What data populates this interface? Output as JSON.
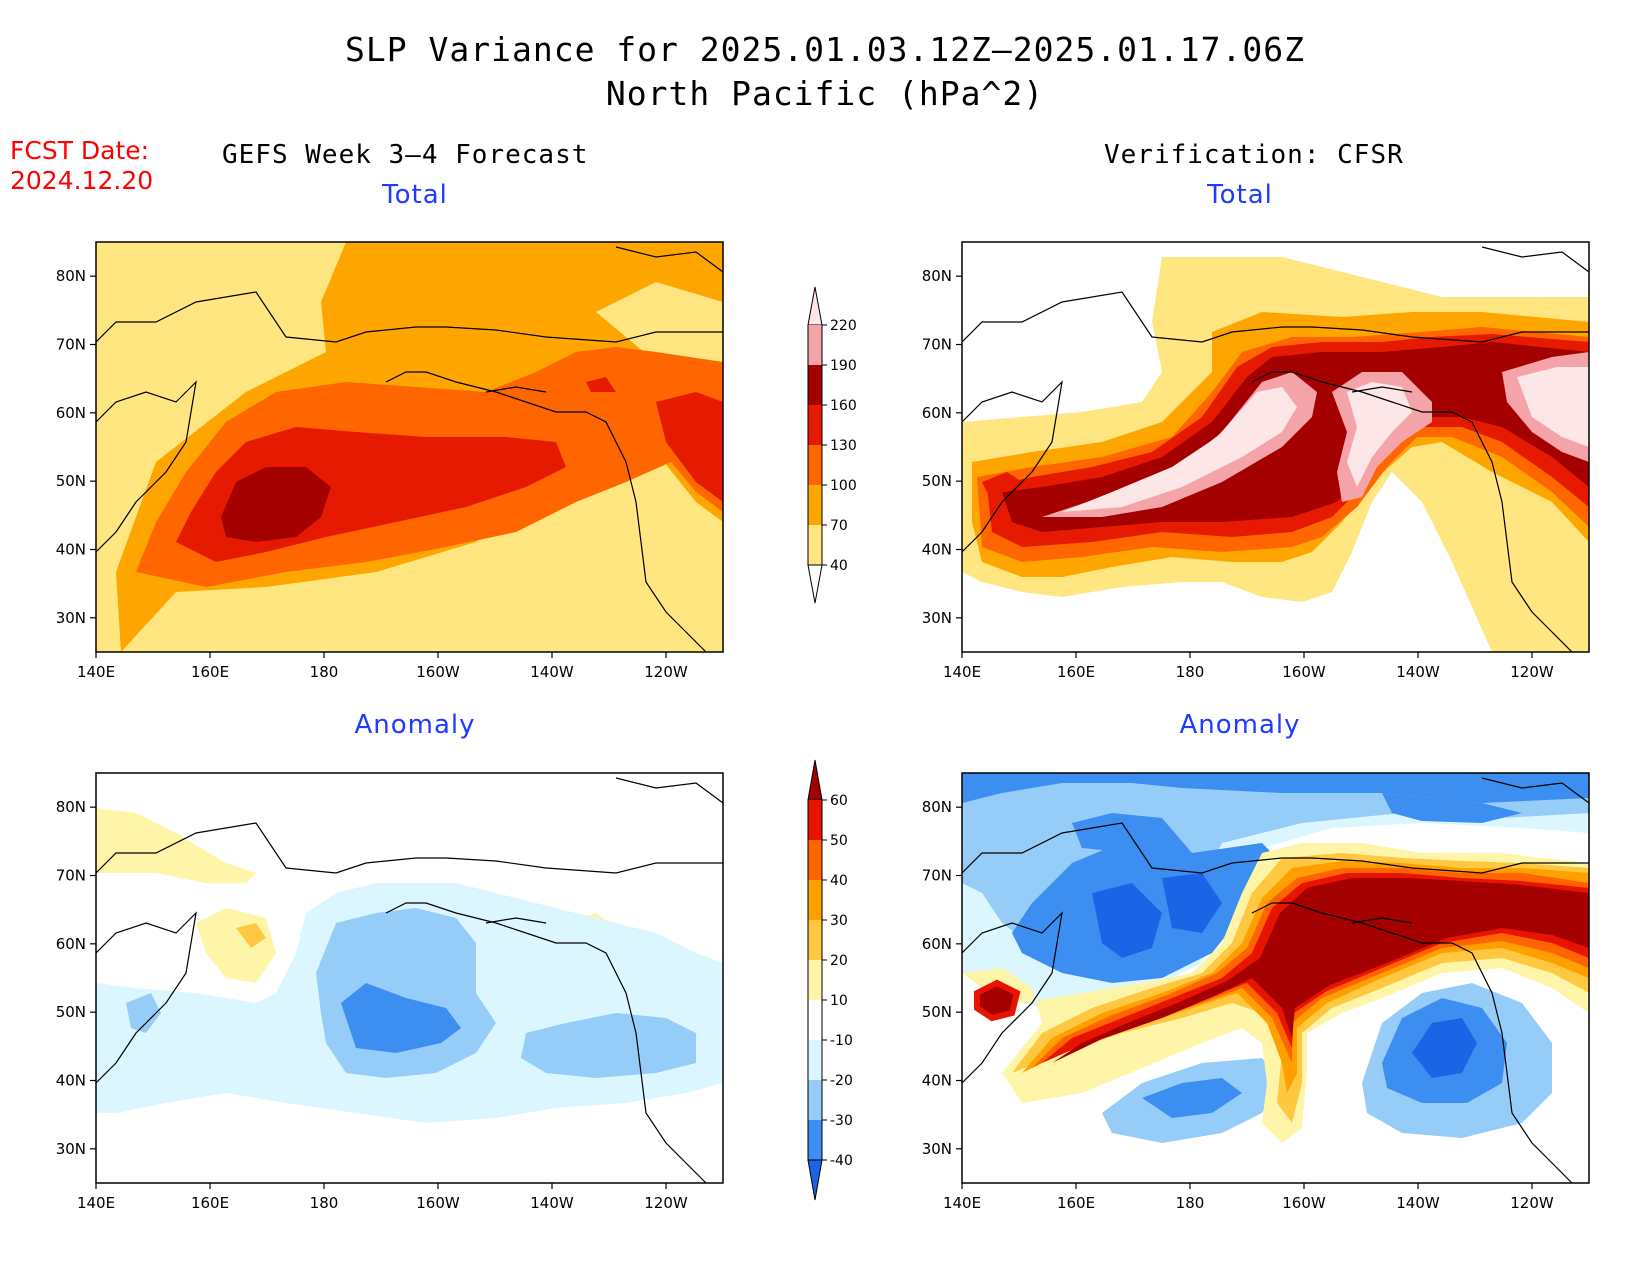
{
  "title": {
    "line1": "SLP Variance for 2025.01.03.12Z–2025.01.17.06Z",
    "line2": "North Pacific (hPa^2)"
  },
  "forecast_date": {
    "label": "FCST Date:",
    "value": "2024.12.20"
  },
  "columns": {
    "left": "GEFS Week 3–4 Forecast",
    "right": "Verification: CFSR"
  },
  "panel_titles": {
    "total": "Total",
    "anomaly": "Anomaly"
  },
  "axes": {
    "x_ticks": [
      "140E",
      "160E",
      "180",
      "160W",
      "140W",
      "120W"
    ],
    "y_ticks": [
      "80N",
      "70N",
      "60N",
      "50N",
      "40N",
      "30N"
    ],
    "lon_range_deg_east": [
      140,
      250
    ],
    "lat_range_deg": [
      25,
      85
    ]
  },
  "colorbar_total": {
    "levels": [
      "40",
      "70",
      "100",
      "130",
      "160",
      "190",
      "220"
    ],
    "colors": [
      "#ffe680",
      "#ffa500",
      "#ff6600",
      "#e61a00",
      "#a50000",
      "#f4a3a8",
      "#fde6e8"
    ]
  },
  "colorbar_anomaly": {
    "levels": [
      "-40",
      "-30",
      "-20",
      "-10",
      "10",
      "20",
      "30",
      "40",
      "50",
      "60"
    ],
    "colors": [
      "#1a64e6",
      "#3c8ef0",
      "#96ccf8",
      "#dcf6ff",
      "#ffffff",
      "#fff5a8",
      "#ffc840",
      "#ffa000",
      "#ff6400",
      "#e61400",
      "#a50000"
    ]
  },
  "map_colors": {
    "land_outline": "#000000",
    "background": "#ffffff"
  }
}
